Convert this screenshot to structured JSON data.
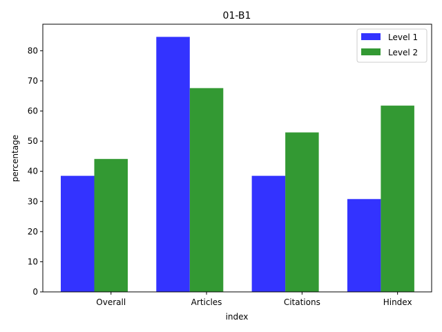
{
  "chart_data": {
    "type": "bar",
    "title": "01-B1",
    "xlabel": "index",
    "ylabel": "percentage",
    "categories": [
      "Overall",
      "Articles",
      "Citations",
      "Hindex"
    ],
    "series": [
      {
        "name": "Level 1",
        "color": "#3333ff",
        "values": [
          38.5,
          84.6,
          38.5,
          30.8
        ]
      },
      {
        "name": "Level 2",
        "color": "#339933",
        "values": [
          44.1,
          67.6,
          52.9,
          61.8
        ]
      }
    ],
    "ylim": [
      0,
      88.8
    ],
    "yticks": [
      0,
      10,
      20,
      30,
      40,
      50,
      60,
      70,
      80
    ],
    "grid": false,
    "legend_position": "top-right"
  }
}
